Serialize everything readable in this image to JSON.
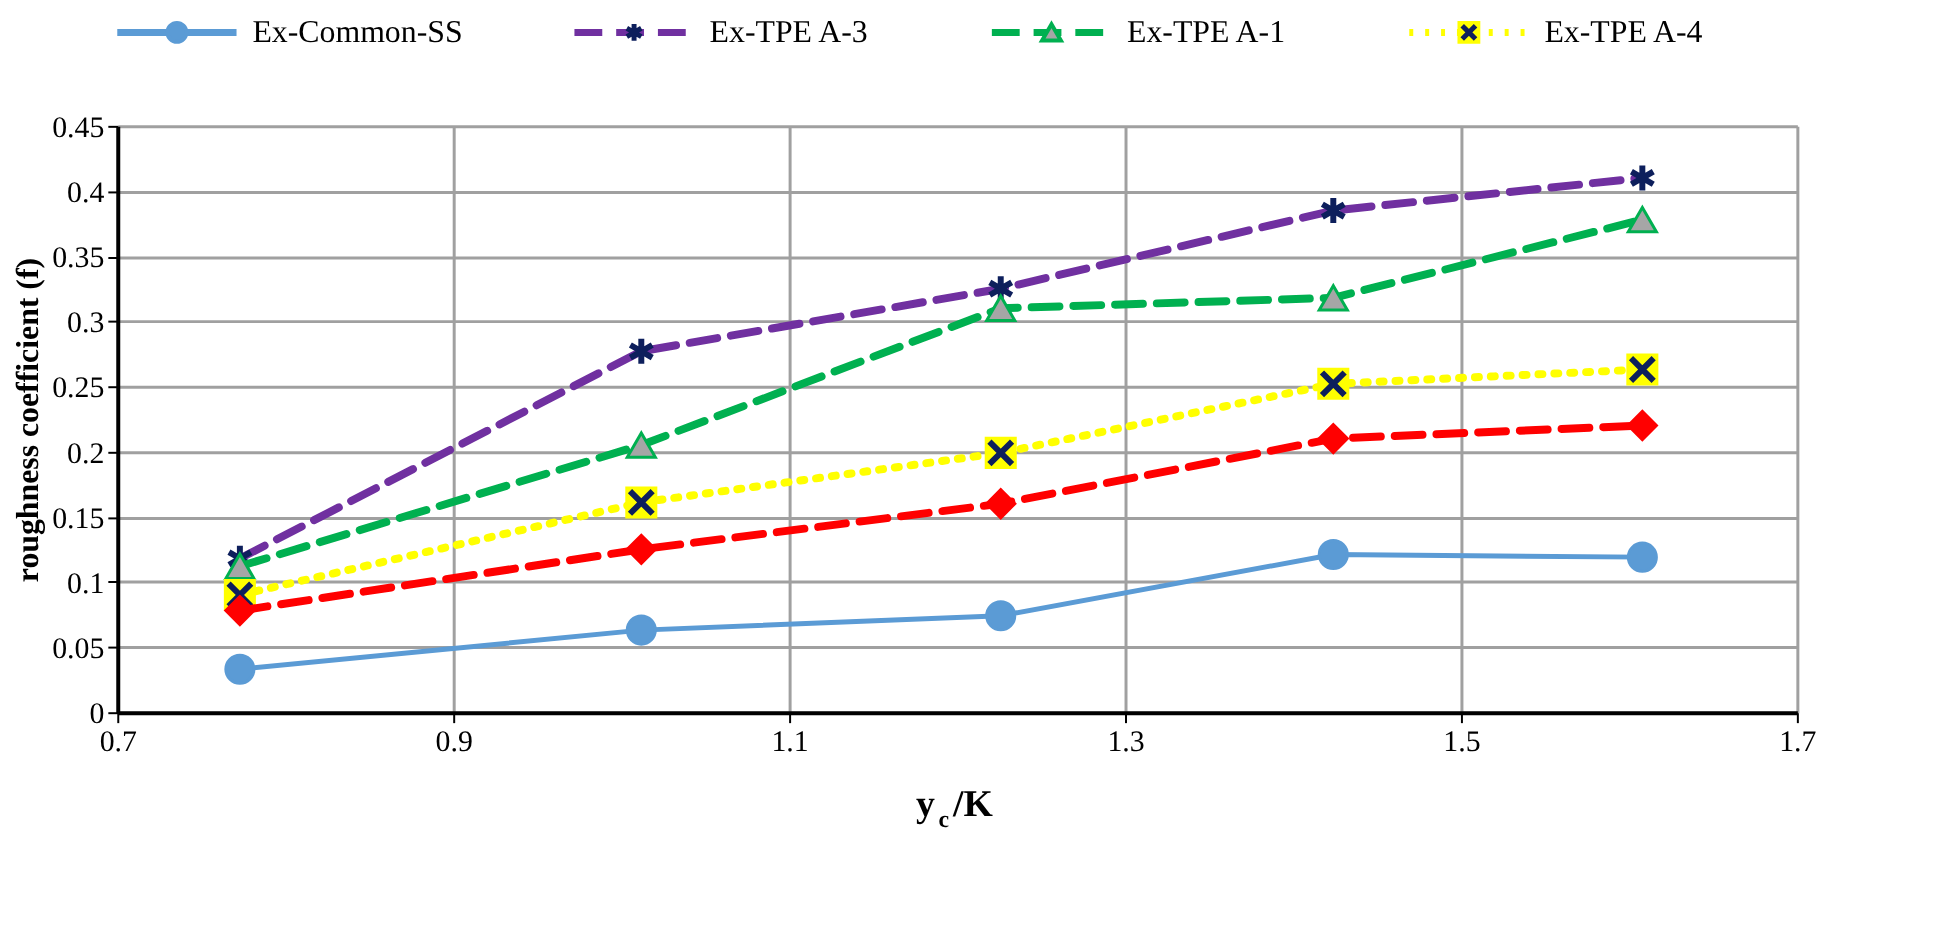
{
  "chart_data": {
    "type": "line",
    "xlabel": "y$_{c}$/K",
    "ylabel": "roughness coefficient (f)",
    "x": [
      0.773,
      1.012,
      1.226,
      1.424,
      1.608
    ],
    "series": [
      {
        "name": "Ex-Common-SS",
        "color": "#5b9bd5",
        "marker": "circle",
        "line_style": "solid",
        "values": [
          0.033,
          0.063,
          0.074,
          0.121,
          0.119
        ]
      },
      {
        "name": "Ex-TPE A-3",
        "color": "#7030a0",
        "marker": "cross",
        "line_style": "dashed",
        "values": [
          0.118,
          0.277,
          0.325,
          0.385,
          0.41
        ]
      },
      {
        "name": "Ex-TPE A-1",
        "color": "#00b050",
        "marker": "triangle",
        "line_style": "dashed",
        "values": [
          0.112,
          0.205,
          0.31,
          0.318,
          0.378
        ]
      },
      {
        "name": "Ex-TPE A-4",
        "color": "#ffff00",
        "marker": "square",
        "line_style": "dotted",
        "values": [
          0.09,
          0.161,
          0.199,
          0.252,
          0.263
        ]
      },
      {
        "color": "#ff0000",
        "marker": "diamond",
        "line_style": "dashed",
        "values": [
          0.078,
          0.125,
          0.16,
          0.21,
          0.22
        ]
      }
    ],
    "xlim": [
      0.7,
      1.7
    ],
    "xticks": [
      0.7,
      0.9,
      1.1,
      1.3,
      1.5,
      1.7
    ],
    "ylim": [
      0,
      0.45
    ],
    "yticks": [
      0,
      0.05,
      0.1,
      0.15,
      0.2,
      0.25,
      0.3,
      0.35,
      0.4,
      0.45
    ],
    "grid": true,
    "legend": "top"
  }
}
